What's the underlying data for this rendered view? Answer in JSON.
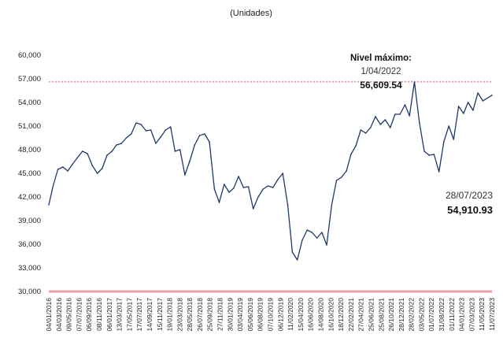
{
  "subtitle": "(Unidades)",
  "colors": {
    "line": "#1f3868",
    "max_line": "#d9534f",
    "baseline": "#e8a0a6",
    "text": "#222222"
  },
  "annotations": {
    "max": {
      "title": "Nivel máximo:",
      "date": "1/04/2022",
      "value": "56,609.54"
    },
    "last": {
      "date": "28/07/2023",
      "value": "54,910.93"
    }
  },
  "chart_data": {
    "type": "line",
    "title": "",
    "subtitle": "(Unidades)",
    "xlabel": "",
    "ylabel": "",
    "ylim": [
      30000,
      60000
    ],
    "yticks": [
      30000,
      33000,
      36000,
      39000,
      42000,
      45000,
      48000,
      51000,
      54000,
      57000,
      60000
    ],
    "ytick_labels": [
      "30,000",
      "33,000",
      "36,000",
      "39,000",
      "42,000",
      "45,000",
      "48,000",
      "51,000",
      "54,000",
      "57,000",
      "60,000"
    ],
    "x_tick_labels": [
      "04/01/2016",
      "04/03/2016",
      "09/05/2016",
      "07/07/2016",
      "06/09/2016",
      "08/11/2016",
      "06/01/2017",
      "13/03/2017",
      "17/05/2017",
      "17/07/2017",
      "14/09/2017",
      "15/11/2017",
      "19/01/2018",
      "23/03/2018",
      "28/05/2018",
      "26/07/2018",
      "25/09/2018",
      "27/11/2018",
      "30/01/2019",
      "03/04/2019",
      "05/06/2019",
      "06/08/2019",
      "07/10/2019",
      "06/12/2019",
      "11/02/2020",
      "15/04/2020",
      "16/06/2020",
      "14/08/2020",
      "16/10/2020",
      "18/12/2020",
      "22/02/2021",
      "27/04/2021",
      "25/06/2021",
      "25/08/2021",
      "26/10/2021",
      "28/12/2021",
      "28/02/2022",
      "03/05/2022",
      "01/07/2022",
      "31/08/2022",
      "01/11/2022",
      "04/01/2023",
      "07/03/2023",
      "11/05/2023",
      "11/07/2023"
    ],
    "max_reference": {
      "value": 56609.54,
      "date": "01/04/2022"
    },
    "series": [
      {
        "x": [
          "2016-01-04",
          "2016-02-01",
          "2016-03-01",
          "2016-04-01",
          "2016-05-01",
          "2016-06-01",
          "2016-07-01",
          "2016-08-01",
          "2016-09-01",
          "2016-10-01",
          "2016-11-01",
          "2016-12-01",
          "2017-01-01",
          "2017-02-01",
          "2017-03-01",
          "2017-04-01",
          "2017-05-01",
          "2017-06-01",
          "2017-07-01",
          "2017-08-01",
          "2017-09-01",
          "2017-10-01",
          "2017-11-01",
          "2017-12-01",
          "2018-01-01",
          "2018-02-01",
          "2018-03-01",
          "2018-04-01",
          "2018-05-01",
          "2018-06-01",
          "2018-07-01",
          "2018-08-01",
          "2018-09-01",
          "2018-10-01",
          "2018-11-01",
          "2018-12-01",
          "2019-01-01",
          "2019-02-01",
          "2019-03-01",
          "2019-04-01",
          "2019-05-01",
          "2019-06-01",
          "2019-07-01",
          "2019-08-01",
          "2019-09-01",
          "2019-10-01",
          "2019-11-01",
          "2019-12-01",
          "2020-01-01",
          "2020-02-01",
          "2020-03-01",
          "2020-04-01",
          "2020-05-01",
          "2020-06-01",
          "2020-07-01",
          "2020-08-01",
          "2020-09-01",
          "2020-10-01",
          "2020-11-01",
          "2020-12-01",
          "2021-01-01",
          "2021-02-01",
          "2021-03-01",
          "2021-04-01",
          "2021-05-01",
          "2021-06-01",
          "2021-07-01",
          "2021-08-01",
          "2021-09-01",
          "2021-10-01",
          "2021-11-01",
          "2021-12-01",
          "2022-01-01",
          "2022-02-01",
          "2022-03-01",
          "2022-04-01",
          "2022-05-01",
          "2022-06-01",
          "2022-07-01",
          "2022-08-01",
          "2022-09-01",
          "2022-10-01",
          "2022-11-01",
          "2022-12-01",
          "2023-01-01",
          "2023-02-01",
          "2023-03-01",
          "2023-04-01",
          "2023-05-01",
          "2023-06-01",
          "2023-07-28"
        ],
        "values": [
          41000,
          43500,
          45500,
          45800,
          45300,
          46200,
          47000,
          47800,
          47500,
          46000,
          45000,
          45600,
          47300,
          47800,
          48600,
          48800,
          49500,
          50000,
          51400,
          51200,
          50400,
          50500,
          48800,
          49600,
          50500,
          50900,
          47800,
          48000,
          44800,
          46600,
          48600,
          49800,
          50000,
          49000,
          43000,
          41300,
          43600,
          42600,
          43100,
          44600,
          43200,
          43300,
          40500,
          42000,
          43000,
          43400,
          43200,
          44200,
          45000,
          41000,
          35000,
          34000,
          36500,
          37800,
          37500,
          36800,
          37500,
          35900,
          41000,
          44100,
          44500,
          45300,
          47400,
          48500,
          50500,
          50100,
          50800,
          52200,
          51200,
          51800,
          50800,
          52500,
          52500,
          53700,
          52300,
          56600,
          51500,
          47800,
          47300,
          47400,
          45200,
          49000,
          51000,
          49300,
          53500,
          52600,
          54000,
          53000,
          55200,
          54200,
          54911
        ]
      }
    ]
  }
}
